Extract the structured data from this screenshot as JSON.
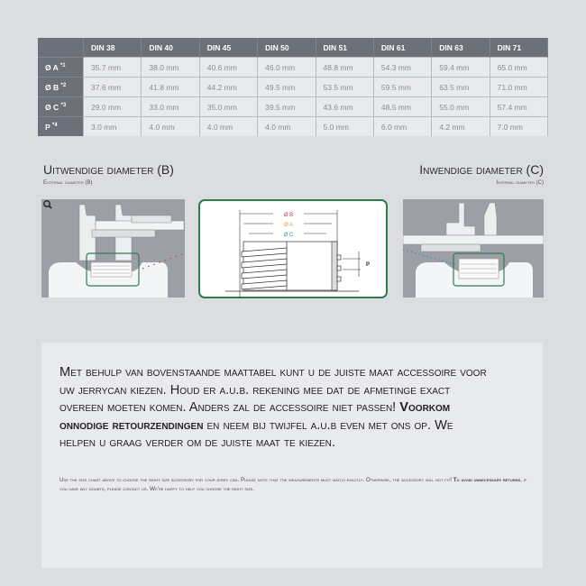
{
  "table": {
    "columns": [
      "",
      "DIN 38",
      "DIN 40",
      "DIN 45",
      "DIN 50",
      "DIN 51",
      "DIN 61",
      "DIN 63",
      "DIN 71"
    ],
    "rows": [
      {
        "label": "Ø A",
        "note": "*1",
        "values": [
          "35.7 mm",
          "38.0 mm",
          "40.6 mm",
          "46.0 mm",
          "48.8 mm",
          "54.3 mm",
          "59.4 mm",
          "65.0 mm"
        ]
      },
      {
        "label": "Ø B",
        "note": "*2",
        "values": [
          "37.6 mm",
          "41.8 mm",
          "44.2 mm",
          "49.5 mm",
          "53.5 mm",
          "59.5 mm",
          "63.5 mm",
          "71.0 mm"
        ]
      },
      {
        "label": "Ø C",
        "note": "*3",
        "values": [
          "29.0 mm",
          "33.0 mm",
          "35.0 mm",
          "39.5 mm",
          "43.6 mm",
          "48.5 mm",
          "55.0 mm",
          "57.4 mm"
        ]
      },
      {
        "label": "P",
        "note": "*4",
        "values": [
          "3.0 mm",
          "4.0 mm",
          "4.0 mm",
          "4.0 mm",
          "5.0 mm",
          "6.0 mm",
          "4.2 mm",
          "7.0 mm"
        ]
      }
    ]
  },
  "external": {
    "title": "Uitwendige diameter (B)",
    "subtitle": "External diameter (B)"
  },
  "internal": {
    "title": "Inwendige diameter (C)",
    "subtitle": "Internal diameter (C)"
  },
  "diagram": {
    "label_b": "Ø B",
    "label_a": "Ø A",
    "label_c": "Ø C",
    "label_p": "P",
    "color_b": "#c0394b",
    "color_a": "#d4a43a",
    "color_c": "#3a8fc0",
    "accent": "#2e7d4f"
  },
  "info": {
    "nl_part1": "Met behulp van bovenstaande maattabel kunt u de juiste maat accessoire voor uw jerrycan kiezen. Houd er a.u.b. rekening mee dat de afmetinge exact overeen moeten komen. Anders zal de accessoire niet passen! ",
    "nl_bold": "Voorkom onnodige retourzendingen",
    "nl_part2": " en neem bij twijfel a.u.b even met ons op. We helpen u graag verder om de juiste maat te kiezen.",
    "en_part1": "Use the size chart above to choose the right size accessory for your jerry can. Please note that the measurements must match exactly. Otherwise, the accessory will not fit! ",
    "en_bold": "To avoid unnecessary returns",
    "en_part2": ", if you have any doubts, please contact us. We're happy to help you choose the right size."
  }
}
